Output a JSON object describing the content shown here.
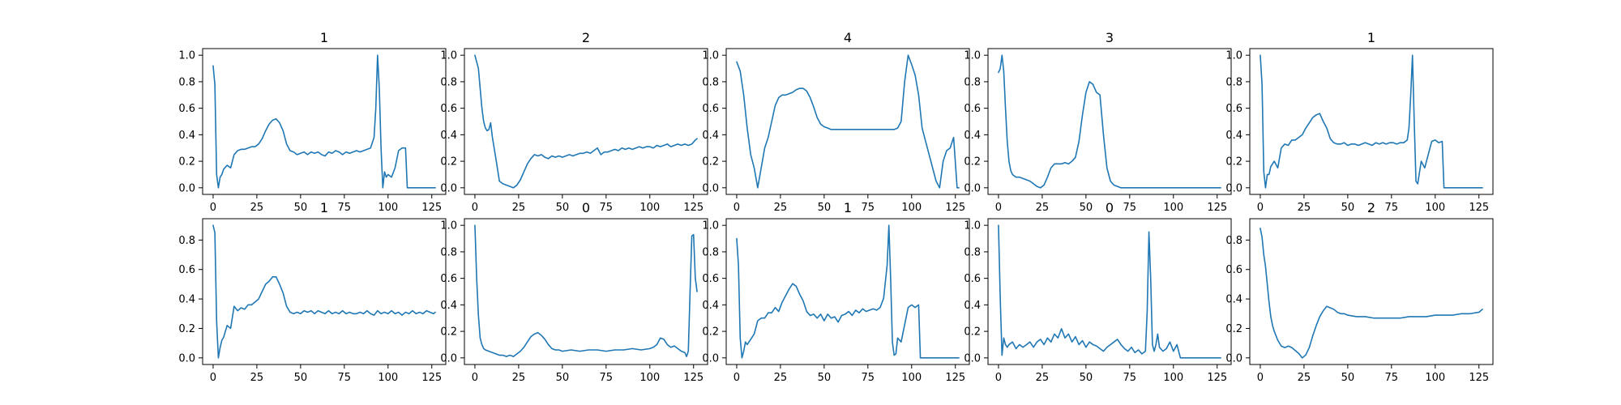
{
  "figure": {
    "line_color": "#1f77b4",
    "frame_color": "#000000"
  },
  "chart_data": [
    {
      "type": "line",
      "title": "1",
      "xlim": [
        -6,
        133
      ],
      "ylim": [
        -0.05,
        1.05
      ],
      "xticks": [
        0,
        25,
        50,
        75,
        100,
        125
      ],
      "yticks": [
        0.0,
        0.2,
        0.4,
        0.6,
        0.8,
        1.0
      ],
      "x": [
        0,
        1,
        2,
        3,
        4,
        5,
        6,
        8,
        10,
        12,
        14,
        16,
        18,
        20,
        22,
        24,
        26,
        28,
        30,
        32,
        34,
        36,
        38,
        40,
        42,
        44,
        46,
        48,
        50,
        52,
        54,
        56,
        58,
        60,
        62,
        64,
        66,
        68,
        70,
        72,
        74,
        76,
        78,
        80,
        82,
        84,
        86,
        88,
        90,
        92,
        93,
        94,
        95,
        96,
        97,
        98,
        99,
        100,
        102,
        104,
        106,
        108,
        110,
        111,
        112,
        115,
        120,
        125,
        127
      ],
      "y": [
        0.92,
        0.78,
        0.1,
        0.0,
        0.08,
        0.1,
        0.14,
        0.17,
        0.15,
        0.25,
        0.28,
        0.29,
        0.29,
        0.3,
        0.31,
        0.31,
        0.33,
        0.37,
        0.43,
        0.48,
        0.51,
        0.52,
        0.49,
        0.43,
        0.33,
        0.28,
        0.27,
        0.25,
        0.26,
        0.27,
        0.25,
        0.27,
        0.26,
        0.27,
        0.25,
        0.24,
        0.27,
        0.26,
        0.28,
        0.27,
        0.25,
        0.27,
        0.26,
        0.27,
        0.28,
        0.27,
        0.28,
        0.29,
        0.3,
        0.38,
        0.6,
        1.0,
        0.75,
        0.3,
        0.0,
        0.12,
        0.08,
        0.1,
        0.08,
        0.15,
        0.28,
        0.3,
        0.3,
        0.0,
        0.0,
        0.0,
        0.0,
        0.0,
        0.0
      ]
    },
    {
      "type": "line",
      "title": "2",
      "xlim": [
        -6,
        133
      ],
      "ylim": [
        -0.05,
        1.05
      ],
      "xticks": [
        0,
        25,
        50,
        75,
        100,
        125
      ],
      "yticks": [
        0.0,
        0.2,
        0.4,
        0.6,
        0.8,
        1.0
      ],
      "x": [
        0,
        2,
        4,
        5,
        6,
        7,
        8,
        9,
        10,
        11,
        12,
        14,
        16,
        18,
        20,
        22,
        24,
        26,
        28,
        30,
        32,
        34,
        36,
        38,
        40,
        42,
        44,
        46,
        48,
        50,
        52,
        54,
        56,
        58,
        60,
        62,
        64,
        66,
        68,
        70,
        72,
        74,
        76,
        78,
        80,
        82,
        84,
        86,
        88,
        90,
        92,
        94,
        96,
        98,
        100,
        102,
        104,
        106,
        108,
        110,
        112,
        114,
        116,
        118,
        120,
        122,
        124,
        126,
        127
      ],
      "y": [
        1.0,
        0.9,
        0.6,
        0.5,
        0.45,
        0.43,
        0.44,
        0.49,
        0.38,
        0.3,
        0.22,
        0.05,
        0.03,
        0.02,
        0.01,
        0.0,
        0.02,
        0.06,
        0.12,
        0.18,
        0.22,
        0.25,
        0.24,
        0.25,
        0.23,
        0.22,
        0.24,
        0.23,
        0.24,
        0.23,
        0.24,
        0.25,
        0.24,
        0.25,
        0.26,
        0.26,
        0.27,
        0.26,
        0.28,
        0.3,
        0.25,
        0.27,
        0.27,
        0.28,
        0.29,
        0.28,
        0.3,
        0.29,
        0.3,
        0.29,
        0.3,
        0.31,
        0.3,
        0.31,
        0.31,
        0.3,
        0.32,
        0.31,
        0.32,
        0.33,
        0.31,
        0.32,
        0.33,
        0.32,
        0.33,
        0.32,
        0.33,
        0.36,
        0.37
      ]
    },
    {
      "type": "line",
      "title": "4",
      "xlim": [
        -6,
        133
      ],
      "ylim": [
        -0.05,
        1.05
      ],
      "xticks": [
        0,
        25,
        50,
        75,
        100,
        125
      ],
      "yticks": [
        0.0,
        0.2,
        0.4,
        0.6,
        0.8,
        1.0
      ],
      "x": [
        0,
        2,
        4,
        6,
        8,
        10,
        12,
        14,
        16,
        18,
        20,
        22,
        24,
        26,
        28,
        30,
        32,
        34,
        36,
        38,
        40,
        42,
        44,
        46,
        48,
        50,
        52,
        54,
        56,
        58,
        60,
        65,
        70,
        75,
        80,
        85,
        90,
        92,
        94,
        96,
        98,
        100,
        102,
        104,
        106,
        108,
        110,
        112,
        114,
        116,
        118,
        120,
        122,
        124,
        126,
        127
      ],
      "y": [
        0.95,
        0.88,
        0.7,
        0.45,
        0.25,
        0.15,
        0.0,
        0.15,
        0.3,
        0.38,
        0.5,
        0.62,
        0.68,
        0.7,
        0.7,
        0.71,
        0.72,
        0.74,
        0.75,
        0.75,
        0.73,
        0.68,
        0.61,
        0.53,
        0.48,
        0.46,
        0.45,
        0.44,
        0.44,
        0.44,
        0.44,
        0.44,
        0.44,
        0.44,
        0.44,
        0.44,
        0.44,
        0.45,
        0.5,
        0.8,
        1.0,
        0.93,
        0.85,
        0.7,
        0.45,
        0.35,
        0.25,
        0.15,
        0.05,
        0.0,
        0.2,
        0.28,
        0.3,
        0.38,
        0.0,
        0.0
      ]
    },
    {
      "type": "line",
      "title": "3",
      "xlim": [
        -6,
        133
      ],
      "ylim": [
        -0.05,
        1.05
      ],
      "xticks": [
        0,
        25,
        50,
        75,
        100,
        125
      ],
      "yticks": [
        0.0,
        0.2,
        0.4,
        0.6,
        0.8,
        1.0
      ],
      "x": [
        0,
        1,
        2,
        3,
        4,
        5,
        6,
        7,
        8,
        10,
        12,
        14,
        16,
        18,
        20,
        22,
        24,
        26,
        28,
        30,
        32,
        34,
        36,
        38,
        40,
        42,
        44,
        46,
        48,
        50,
        52,
        54,
        56,
        58,
        60,
        62,
        64,
        66,
        68,
        70,
        72,
        75,
        80,
        90,
        100,
        110,
        120,
        125,
        127
      ],
      "y": [
        0.87,
        0.9,
        1.0,
        0.88,
        0.6,
        0.35,
        0.2,
        0.13,
        0.1,
        0.08,
        0.08,
        0.07,
        0.06,
        0.05,
        0.03,
        0.01,
        0.0,
        0.02,
        0.08,
        0.15,
        0.18,
        0.18,
        0.18,
        0.19,
        0.18,
        0.2,
        0.23,
        0.35,
        0.55,
        0.72,
        0.8,
        0.78,
        0.72,
        0.7,
        0.4,
        0.15,
        0.05,
        0.02,
        0.01,
        0.0,
        0.0,
        0.0,
        0.0,
        0.0,
        0.0,
        0.0,
        0.0,
        0.0,
        0.0
      ]
    },
    {
      "type": "line",
      "title": "1",
      "xlim": [
        -6,
        133
      ],
      "ylim": [
        -0.05,
        1.05
      ],
      "xticks": [
        0,
        25,
        50,
        75,
        100,
        125
      ],
      "yticks": [
        0.0,
        0.2,
        0.4,
        0.6,
        0.8,
        1.0
      ],
      "x": [
        0,
        1,
        2,
        3,
        4,
        5,
        6,
        8,
        10,
        12,
        14,
        16,
        18,
        20,
        22,
        24,
        26,
        28,
        30,
        32,
        34,
        36,
        38,
        40,
        42,
        44,
        46,
        48,
        50,
        52,
        54,
        56,
        58,
        60,
        62,
        64,
        66,
        68,
        70,
        72,
        74,
        76,
        78,
        80,
        82,
        84,
        85,
        86,
        87,
        88,
        89,
        90,
        92,
        94,
        96,
        98,
        100,
        102,
        104,
        105,
        106,
        110,
        115,
        120,
        125,
        127
      ],
      "y": [
        1.0,
        0.78,
        0.12,
        0.0,
        0.1,
        0.1,
        0.16,
        0.2,
        0.15,
        0.3,
        0.33,
        0.32,
        0.36,
        0.36,
        0.38,
        0.4,
        0.45,
        0.49,
        0.53,
        0.55,
        0.56,
        0.5,
        0.45,
        0.37,
        0.34,
        0.33,
        0.33,
        0.34,
        0.32,
        0.33,
        0.33,
        0.32,
        0.33,
        0.34,
        0.33,
        0.32,
        0.34,
        0.33,
        0.34,
        0.33,
        0.34,
        0.34,
        0.33,
        0.34,
        0.34,
        0.36,
        0.45,
        0.7,
        1.0,
        0.5,
        0.05,
        0.03,
        0.2,
        0.15,
        0.25,
        0.35,
        0.36,
        0.34,
        0.35,
        0.0,
        0.0,
        0.0,
        0.0,
        0.0,
        0.0,
        0.0
      ]
    },
    {
      "type": "line",
      "title": "1",
      "xlim": [
        -6,
        133
      ],
      "ylim": [
        -0.045,
        0.945
      ],
      "xticks": [
        0,
        25,
        50,
        75,
        100,
        125
      ],
      "yticks": [
        0.0,
        0.2,
        0.4,
        0.6,
        0.8
      ],
      "x": [
        0,
        1,
        2,
        3,
        4,
        5,
        6,
        8,
        10,
        12,
        14,
        16,
        18,
        20,
        22,
        24,
        26,
        28,
        30,
        32,
        34,
        36,
        38,
        40,
        42,
        44,
        46,
        48,
        50,
        52,
        54,
        56,
        58,
        60,
        62,
        64,
        66,
        68,
        70,
        72,
        74,
        76,
        78,
        80,
        82,
        84,
        86,
        88,
        90,
        92,
        94,
        96,
        98,
        100,
        102,
        104,
        106,
        108,
        110,
        112,
        114,
        116,
        118,
        120,
        122,
        124,
        126,
        127
      ],
      "y": [
        0.9,
        0.85,
        0.25,
        0.0,
        0.07,
        0.12,
        0.14,
        0.22,
        0.2,
        0.35,
        0.32,
        0.34,
        0.33,
        0.36,
        0.36,
        0.38,
        0.4,
        0.45,
        0.5,
        0.52,
        0.55,
        0.55,
        0.5,
        0.44,
        0.35,
        0.31,
        0.3,
        0.31,
        0.3,
        0.32,
        0.31,
        0.32,
        0.3,
        0.32,
        0.31,
        0.3,
        0.32,
        0.3,
        0.31,
        0.3,
        0.32,
        0.3,
        0.31,
        0.3,
        0.3,
        0.31,
        0.3,
        0.32,
        0.3,
        0.29,
        0.32,
        0.3,
        0.31,
        0.3,
        0.32,
        0.3,
        0.31,
        0.29,
        0.31,
        0.3,
        0.32,
        0.3,
        0.31,
        0.3,
        0.32,
        0.31,
        0.3,
        0.31
      ]
    },
    {
      "type": "line",
      "title": "0",
      "xlim": [
        -6,
        133
      ],
      "ylim": [
        -0.05,
        1.05
      ],
      "xticks": [
        0,
        25,
        50,
        75,
        100,
        125
      ],
      "yticks": [
        0.0,
        0.2,
        0.4,
        0.6,
        0.8,
        1.0
      ],
      "x": [
        0,
        1,
        2,
        3,
        4,
        5,
        6,
        8,
        10,
        12,
        14,
        16,
        18,
        20,
        22,
        24,
        26,
        28,
        30,
        32,
        34,
        36,
        38,
        40,
        42,
        44,
        46,
        48,
        50,
        55,
        60,
        65,
        70,
        75,
        80,
        85,
        90,
        95,
        100,
        102,
        104,
        106,
        108,
        110,
        112,
        114,
        116,
        118,
        120,
        121,
        122,
        123,
        124,
        125,
        126,
        127
      ],
      "y": [
        1.0,
        0.6,
        0.32,
        0.15,
        0.1,
        0.07,
        0.06,
        0.05,
        0.04,
        0.03,
        0.02,
        0.02,
        0.01,
        0.02,
        0.01,
        0.03,
        0.05,
        0.08,
        0.12,
        0.16,
        0.18,
        0.19,
        0.17,
        0.14,
        0.1,
        0.07,
        0.06,
        0.06,
        0.05,
        0.06,
        0.05,
        0.06,
        0.06,
        0.05,
        0.06,
        0.06,
        0.07,
        0.06,
        0.07,
        0.08,
        0.1,
        0.15,
        0.14,
        0.1,
        0.08,
        0.09,
        0.07,
        0.05,
        0.04,
        0.01,
        0.05,
        0.5,
        0.92,
        0.93,
        0.6,
        0.5
      ]
    },
    {
      "type": "line",
      "title": "1",
      "xlim": [
        -6,
        133
      ],
      "ylim": [
        -0.05,
        1.05
      ],
      "xticks": [
        0,
        25,
        50,
        75,
        100,
        125
      ],
      "yticks": [
        0.0,
        0.2,
        0.4,
        0.6,
        0.8,
        1.0
      ],
      "x": [
        0,
        1,
        2,
        3,
        4,
        5,
        6,
        8,
        10,
        12,
        14,
        16,
        18,
        20,
        22,
        24,
        26,
        28,
        30,
        32,
        34,
        36,
        38,
        40,
        42,
        44,
        46,
        48,
        50,
        52,
        54,
        56,
        58,
        60,
        62,
        64,
        66,
        68,
        70,
        72,
        74,
        76,
        78,
        80,
        82,
        84,
        86,
        87,
        88,
        89,
        90,
        91,
        92,
        94,
        96,
        98,
        100,
        102,
        104,
        105,
        106,
        110,
        115,
        120,
        125,
        127
      ],
      "y": [
        0.9,
        0.7,
        0.15,
        0.0,
        0.05,
        0.12,
        0.1,
        0.14,
        0.18,
        0.28,
        0.3,
        0.3,
        0.34,
        0.34,
        0.38,
        0.35,
        0.42,
        0.47,
        0.52,
        0.56,
        0.54,
        0.48,
        0.43,
        0.35,
        0.32,
        0.33,
        0.3,
        0.33,
        0.28,
        0.33,
        0.3,
        0.31,
        0.27,
        0.32,
        0.33,
        0.35,
        0.32,
        0.36,
        0.34,
        0.37,
        0.35,
        0.36,
        0.37,
        0.36,
        0.38,
        0.45,
        0.7,
        1.0,
        0.6,
        0.12,
        0.02,
        0.03,
        0.15,
        0.12,
        0.25,
        0.38,
        0.4,
        0.38,
        0.4,
        0.0,
        0.0,
        0.0,
        0.0,
        0.0,
        0.0,
        0.0
      ]
    },
    {
      "type": "line",
      "title": "0",
      "xlim": [
        -6,
        133
      ],
      "ylim": [
        -0.05,
        1.05
      ],
      "xticks": [
        0,
        25,
        50,
        75,
        100,
        125
      ],
      "yticks": [
        0.0,
        0.2,
        0.4,
        0.6,
        0.8,
        1.0
      ],
      "x": [
        0,
        1,
        2,
        3,
        4,
        5,
        6,
        8,
        10,
        12,
        14,
        16,
        18,
        20,
        22,
        24,
        26,
        28,
        30,
        32,
        34,
        36,
        38,
        40,
        42,
        44,
        46,
        48,
        50,
        52,
        54,
        56,
        58,
        60,
        62,
        64,
        66,
        68,
        70,
        72,
        74,
        76,
        78,
        80,
        82,
        84,
        85,
        86,
        87,
        88,
        89,
        90,
        91,
        92,
        94,
        96,
        98,
        100,
        102,
        104,
        106,
        110,
        115,
        120,
        125,
        127
      ],
      "y": [
        1.0,
        0.45,
        0.02,
        0.15,
        0.1,
        0.08,
        0.1,
        0.12,
        0.07,
        0.1,
        0.08,
        0.1,
        0.12,
        0.08,
        0.12,
        0.14,
        0.1,
        0.15,
        0.12,
        0.18,
        0.15,
        0.22,
        0.15,
        0.18,
        0.12,
        0.16,
        0.1,
        0.13,
        0.08,
        0.12,
        0.1,
        0.09,
        0.07,
        0.05,
        0.08,
        0.1,
        0.12,
        0.14,
        0.1,
        0.07,
        0.05,
        0.08,
        0.04,
        0.06,
        0.03,
        0.05,
        0.35,
        0.95,
        0.6,
        0.1,
        0.05,
        0.1,
        0.18,
        0.08,
        0.05,
        0.07,
        0.12,
        0.05,
        0.1,
        0.0,
        0.0,
        0.0,
        0.0,
        0.0,
        0.0,
        0.0
      ]
    },
    {
      "type": "line",
      "title": "2",
      "xlim": [
        -6,
        133
      ],
      "ylim": [
        -0.045,
        0.945
      ],
      "xticks": [
        0,
        25,
        50,
        75,
        100,
        125
      ],
      "yticks": [
        0.0,
        0.2,
        0.4,
        0.6,
        0.8
      ],
      "x": [
        0,
        1,
        2,
        3,
        4,
        5,
        6,
        7,
        8,
        10,
        12,
        14,
        16,
        18,
        20,
        22,
        24,
        26,
        28,
        30,
        32,
        34,
        36,
        38,
        40,
        42,
        44,
        46,
        48,
        50,
        55,
        60,
        65,
        70,
        75,
        80,
        85,
        90,
        95,
        100,
        105,
        110,
        115,
        120,
        125,
        127
      ],
      "y": [
        0.88,
        0.82,
        0.7,
        0.62,
        0.5,
        0.38,
        0.28,
        0.22,
        0.18,
        0.12,
        0.08,
        0.07,
        0.08,
        0.07,
        0.05,
        0.03,
        0.0,
        0.02,
        0.07,
        0.15,
        0.22,
        0.28,
        0.32,
        0.35,
        0.34,
        0.33,
        0.31,
        0.3,
        0.3,
        0.29,
        0.28,
        0.28,
        0.27,
        0.27,
        0.27,
        0.27,
        0.28,
        0.28,
        0.28,
        0.29,
        0.29,
        0.29,
        0.3,
        0.3,
        0.31,
        0.33
      ]
    }
  ]
}
